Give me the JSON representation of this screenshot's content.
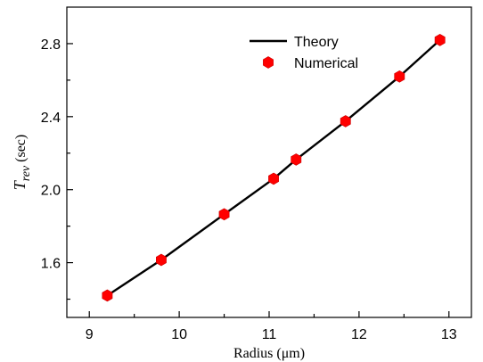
{
  "chart_data": {
    "type": "line",
    "xlabel": "Radius (μm)",
    "ylabel": "T",
    "ylabel_sub": "rev",
    "ylabel_unit": " (sec)",
    "xlim": [
      8.75,
      13.25
    ],
    "ylim": [
      1.3,
      3.0
    ],
    "x_ticks": [
      9,
      10,
      11,
      12,
      13
    ],
    "y_ticks": [
      1.6,
      2.0,
      2.4,
      2.8
    ],
    "x_tick_labels": [
      "9",
      "10",
      "11",
      "12",
      "13"
    ],
    "y_tick_labels": [
      "1.6",
      "2.0",
      "2.4",
      "2.8"
    ],
    "grid": false,
    "legend_position": "top-right",
    "series": [
      {
        "name": "Theory",
        "style": "line",
        "color": "#000000",
        "x": [
          9.2,
          9.8,
          10.5,
          11.05,
          11.3,
          11.85,
          12.45,
          12.9
        ],
        "y": [
          1.42,
          1.615,
          1.865,
          2.06,
          2.165,
          2.375,
          2.62,
          2.82
        ]
      },
      {
        "name": "Numerical",
        "style": "marker",
        "marker": "hexagon",
        "color": "#ff0000",
        "x": [
          9.2,
          9.8,
          10.5,
          11.05,
          11.3,
          11.85,
          12.45,
          12.9
        ],
        "y": [
          1.42,
          1.615,
          1.865,
          2.06,
          2.165,
          2.375,
          2.62,
          2.82
        ]
      }
    ]
  }
}
